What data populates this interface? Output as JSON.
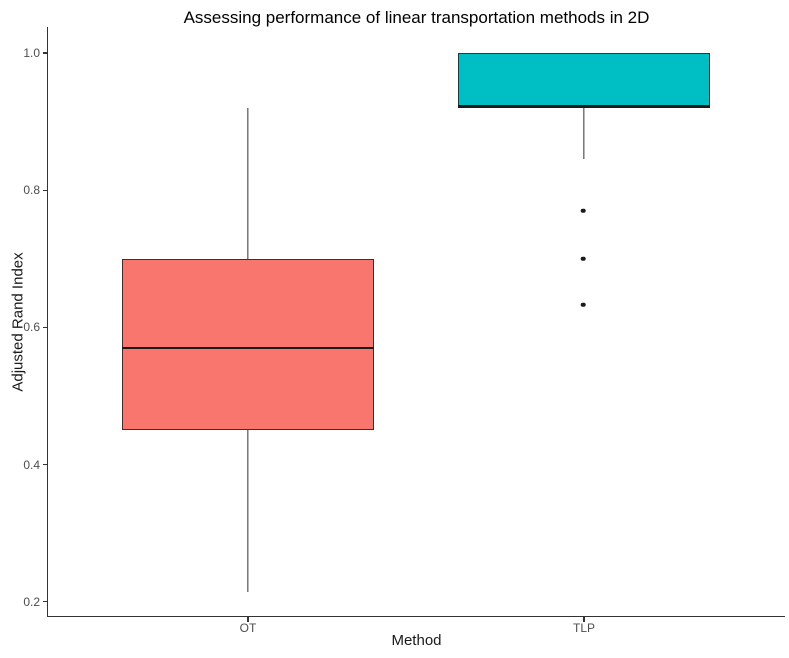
{
  "chart_data": {
    "type": "boxplot",
    "title": "Assessing performance of linear transportation methods in 2D",
    "xlabel": "Method",
    "ylabel": "Adjusted Rand Index",
    "categories": [
      "OT",
      "TLP"
    ],
    "y_ticks": [
      1.0,
      0.8,
      0.6,
      0.4,
      0.2
    ],
    "ylim": [
      0.176,
      1.039
    ],
    "grid": "off",
    "legend": "none",
    "series": [
      {
        "name": "OT",
        "fill": "#F8766D",
        "whisker_low": 0.215,
        "q1": 0.45,
        "median": 0.57,
        "q3": 0.7,
        "whisker_high": 0.92,
        "outliers": []
      },
      {
        "name": "TLP",
        "fill": "#00BFC4",
        "whisker_low": 0.845,
        "q1": 0.92,
        "median": 0.922,
        "q3": 1.0,
        "whisker_high": 1.0,
        "outliers": [
          0.77,
          0.7,
          0.633
        ]
      }
    ],
    "colors": {
      "box_border": "#333333",
      "median": "#1a1a1a",
      "axis": "#333333",
      "tick_label": "#4d4d4d",
      "text": "#000000"
    }
  }
}
